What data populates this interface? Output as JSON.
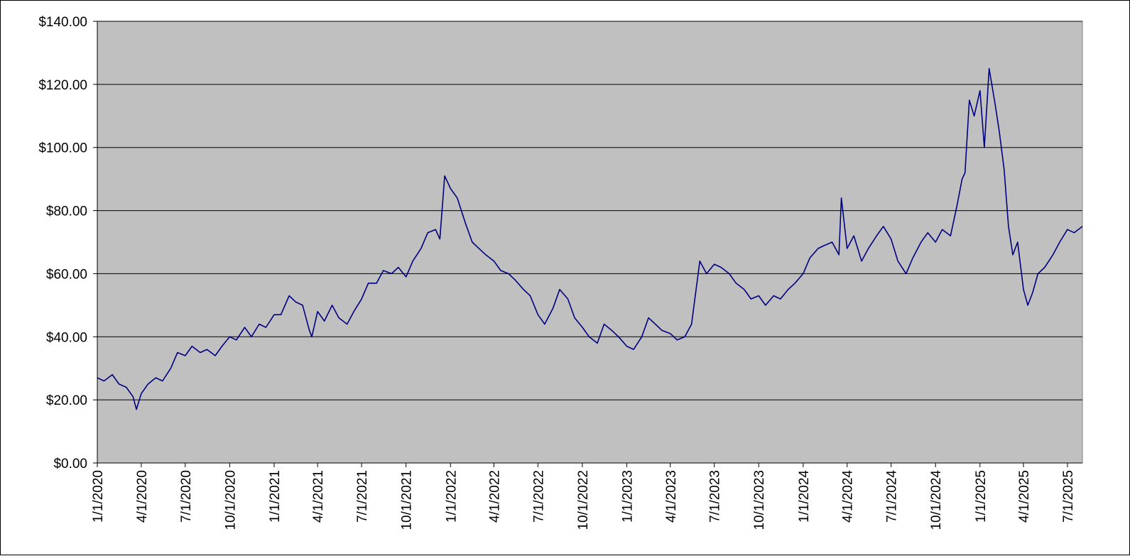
{
  "chart_data": {
    "type": "line",
    "title": "",
    "xlabel": "",
    "ylabel": "",
    "x_range": [
      "1/1/2020",
      "8/1/2025"
    ],
    "ylim": [
      0,
      140
    ],
    "y_ticks": [
      0,
      20,
      40,
      60,
      80,
      100,
      120,
      140
    ],
    "y_tick_labels": [
      "$0.00",
      "$20.00",
      "$40.00",
      "$60.00",
      "$80.00",
      "$100.00",
      "$120.00",
      "$140.00"
    ],
    "x_tick_labels": [
      "1/1/2020",
      "4/1/2020",
      "7/1/2020",
      "10/1/2020",
      "1/1/2021",
      "4/1/2021",
      "7/1/2021",
      "10/1/2021",
      "1/1/2022",
      "4/1/2022",
      "7/1/2022",
      "10/1/2022",
      "1/1/2023",
      "4/1/2023",
      "7/1/2023",
      "10/1/2023",
      "1/1/2024",
      "4/1/2024",
      "7/1/2024",
      "10/1/2024",
      "1/1/2025",
      "4/1/2025",
      "7/1/2025"
    ],
    "grid": true,
    "legend": "none",
    "colors": {
      "plot_background": "#c0c0c0",
      "series": "#000080",
      "gridline": "#000000"
    },
    "series": [
      {
        "x": [
          "1/1/2020",
          "1/15/2020",
          "2/1/2020",
          "2/15/2020",
          "3/1/2020",
          "3/15/2020",
          "3/22/2020",
          "4/1/2020",
          "4/15/2020",
          "5/1/2020",
          "5/15/2020",
          "6/1/2020",
          "6/15/2020",
          "7/1/2020",
          "7/15/2020",
          "8/1/2020",
          "8/15/2020",
          "9/1/2020",
          "9/15/2020",
          "10/1/2020",
          "10/15/2020",
          "11/1/2020",
          "11/15/2020",
          "12/1/2020",
          "12/15/2020",
          "1/1/2021",
          "1/15/2021",
          "2/1/2021",
          "2/15/2021",
          "3/1/2021",
          "3/15/2021",
          "3/20/2021",
          "4/1/2021",
          "4/15/2021",
          "5/1/2021",
          "5/15/2021",
          "6/1/2021",
          "6/15/2021",
          "7/1/2021",
          "7/15/2021",
          "8/1/2021",
          "8/15/2021",
          "9/1/2021",
          "9/15/2021",
          "10/1/2021",
          "10/15/2021",
          "11/1/2021",
          "11/15/2021",
          "12/1/2021",
          "12/10/2021",
          "12/20/2021",
          "1/1/2022",
          "1/15/2022",
          "2/1/2022",
          "2/15/2022",
          "3/1/2022",
          "3/15/2022",
          "4/1/2022",
          "4/15/2022",
          "5/1/2022",
          "5/15/2022",
          "6/1/2022",
          "6/15/2022",
          "7/1/2022",
          "7/15/2022",
          "8/1/2022",
          "8/15/2022",
          "9/1/2022",
          "9/15/2022",
          "10/1/2022",
          "10/15/2022",
          "11/1/2022",
          "11/15/2022",
          "12/1/2022",
          "12/15/2022",
          "1/1/2023",
          "1/15/2023",
          "2/1/2023",
          "2/15/2023",
          "3/1/2023",
          "3/15/2023",
          "4/1/2023",
          "4/15/2023",
          "5/1/2023",
          "5/15/2023",
          "6/1/2023",
          "6/15/2023",
          "7/1/2023",
          "7/15/2023",
          "8/1/2023",
          "8/15/2023",
          "9/1/2023",
          "9/15/2023",
          "10/1/2023",
          "10/15/2023",
          "11/1/2023",
          "11/15/2023",
          "12/1/2023",
          "12/15/2023",
          "1/1/2024",
          "1/15/2024",
          "2/1/2024",
          "2/15/2024",
          "3/1/2024",
          "3/15/2024",
          "3/20/2024",
          "4/1/2024",
          "4/15/2024",
          "5/1/2024",
          "5/15/2024",
          "6/1/2024",
          "6/15/2024",
          "7/1/2024",
          "7/15/2024",
          "8/1/2024",
          "8/15/2024",
          "9/1/2024",
          "9/15/2024",
          "10/1/2024",
          "10/15/2024",
          "11/1/2024",
          "11/15/2024",
          "11/25/2024",
          "12/1/2024",
          "12/10/2024",
          "12/20/2024",
          "1/1/2025",
          "1/10/2025",
          "1/20/2025",
          "2/1/2025",
          "2/10/2025",
          "2/20/2025",
          "3/1/2025",
          "3/10/2025",
          "3/20/2025",
          "4/1/2025",
          "4/10/2025",
          "4/20/2025",
          "5/1/2025",
          "5/15/2025",
          "6/1/2025",
          "6/15/2025",
          "7/1/2025",
          "7/15/2025",
          "8/1/2025"
        ],
        "values": [
          27,
          26,
          28,
          25,
          24,
          21,
          17,
          22,
          25,
          27,
          26,
          30,
          35,
          34,
          37,
          35,
          36,
          34,
          37,
          40,
          39,
          43,
          40,
          44,
          43,
          47,
          47,
          53,
          51,
          50,
          42,
          40,
          48,
          45,
          50,
          46,
          44,
          48,
          52,
          57,
          57,
          61,
          60,
          62,
          59,
          64,
          68,
          73,
          74,
          71,
          91,
          87,
          84,
          76,
          70,
          68,
          66,
          64,
          61,
          60,
          58,
          55,
          53,
          47,
          44,
          49,
          55,
          52,
          46,
          43,
          40,
          38,
          44,
          42,
          40,
          37,
          36,
          40,
          46,
          44,
          42,
          41,
          39,
          40,
          44,
          64,
          60,
          63,
          62,
          60,
          57,
          55,
          52,
          53,
          50,
          53,
          52,
          55,
          57,
          60,
          65,
          68,
          69,
          70,
          66,
          84,
          68,
          72,
          64,
          68,
          72,
          75,
          71,
          64,
          60,
          65,
          70,
          73,
          70,
          74,
          72,
          82,
          90,
          92,
          115,
          110,
          118,
          100,
          125,
          114,
          105,
          93,
          75,
          66,
          70,
          55,
          50,
          54,
          60,
          62,
          66,
          70,
          74,
          73,
          75
        ]
      }
    ]
  }
}
